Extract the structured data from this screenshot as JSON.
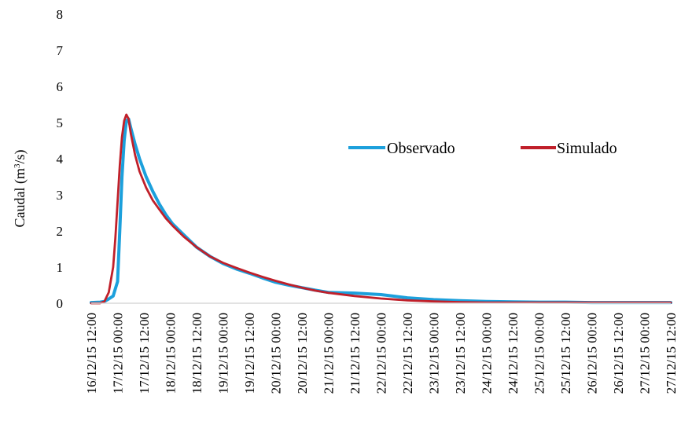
{
  "chart_data": {
    "type": "line",
    "title": "",
    "ylabel": "Caudal (m",
    "ylabel_sup": "3",
    "ylabel_end": "/s)",
    "xlabel": "",
    "ylim": [
      0,
      8
    ],
    "yticks": [
      0,
      1,
      2,
      3,
      4,
      5,
      6,
      7,
      8
    ],
    "xlim_hours": [
      0,
      264
    ],
    "grid": false,
    "legend_position": "right-middle",
    "xtick_labels": [
      "16/12/15 12:00",
      "17/12/15 00:00",
      "17/12/15 12:00",
      "18/12/15 00:00",
      "18/12/15 12:00",
      "19/12/15 00:00",
      "19/12/15 12:00",
      "20/12/15 00:00",
      "20/12/15 12:00",
      "21/12/15 00:00",
      "21/12/15 12:00",
      "22/12/15 00:00",
      "22/12/15 12:00",
      "23/12/15 00:00",
      "23/12/15 12:00",
      "24/12/15 00:00",
      "24/12/15 12:00",
      "25/12/15 00:00",
      "25/12/15 12:00",
      "26/12/15 00:00",
      "26/12/15 12:00",
      "27/12/15 00:00",
      "27/12/15 12:00"
    ],
    "series": [
      {
        "name": "Observado",
        "color": "#1ca0dc",
        "points": [
          [
            0,
            0.02
          ],
          [
            4,
            0.03
          ],
          [
            6,
            0.05
          ],
          [
            8,
            0.12
          ],
          [
            10,
            0.2
          ],
          [
            11,
            0.4
          ],
          [
            12,
            0.6
          ],
          [
            13,
            2.0
          ],
          [
            14,
            3.5
          ],
          [
            15,
            4.5
          ],
          [
            16,
            5.05
          ],
          [
            17,
            5.1
          ],
          [
            18,
            4.85
          ],
          [
            20,
            4.4
          ],
          [
            22,
            4.0
          ],
          [
            25,
            3.5
          ],
          [
            28,
            3.1
          ],
          [
            31,
            2.75
          ],
          [
            34,
            2.45
          ],
          [
            37,
            2.2
          ],
          [
            42,
            1.9
          ],
          [
            48,
            1.55
          ],
          [
            54,
            1.3
          ],
          [
            60,
            1.1
          ],
          [
            66,
            0.95
          ],
          [
            72,
            0.83
          ],
          [
            78,
            0.7
          ],
          [
            84,
            0.58
          ],
          [
            90,
            0.5
          ],
          [
            96,
            0.43
          ],
          [
            102,
            0.36
          ],
          [
            108,
            0.3
          ],
          [
            120,
            0.28
          ],
          [
            132,
            0.24
          ],
          [
            144,
            0.15
          ],
          [
            156,
            0.1
          ],
          [
            168,
            0.07
          ],
          [
            180,
            0.05
          ],
          [
            192,
            0.04
          ],
          [
            204,
            0.03
          ],
          [
            216,
            0.03
          ],
          [
            228,
            0.02
          ],
          [
            240,
            0.02
          ],
          [
            252,
            0.02
          ],
          [
            264,
            0.02
          ]
        ]
      },
      {
        "name": "Simulado",
        "color": "#c0202a",
        "points": [
          [
            0,
            0.0
          ],
          [
            4,
            0.0
          ],
          [
            6,
            0.05
          ],
          [
            8,
            0.3
          ],
          [
            10,
            1.0
          ],
          [
            11,
            1.8
          ],
          [
            12,
            2.8
          ],
          [
            13,
            3.8
          ],
          [
            14,
            4.6
          ],
          [
            15,
            5.05
          ],
          [
            16,
            5.22
          ],
          [
            17,
            5.1
          ],
          [
            18,
            4.7
          ],
          [
            20,
            4.1
          ],
          [
            22,
            3.65
          ],
          [
            25,
            3.2
          ],
          [
            28,
            2.85
          ],
          [
            31,
            2.6
          ],
          [
            34,
            2.35
          ],
          [
            37,
            2.15
          ],
          [
            42,
            1.85
          ],
          [
            48,
            1.55
          ],
          [
            54,
            1.3
          ],
          [
            60,
            1.12
          ],
          [
            66,
            0.98
          ],
          [
            72,
            0.85
          ],
          [
            78,
            0.73
          ],
          [
            84,
            0.62
          ],
          [
            90,
            0.52
          ],
          [
            96,
            0.43
          ],
          [
            102,
            0.35
          ],
          [
            108,
            0.29
          ],
          [
            120,
            0.2
          ],
          [
            132,
            0.13
          ],
          [
            144,
            0.08
          ],
          [
            156,
            0.05
          ],
          [
            168,
            0.03
          ],
          [
            180,
            0.02
          ],
          [
            192,
            0.02
          ],
          [
            204,
            0.02
          ],
          [
            216,
            0.02
          ],
          [
            228,
            0.02
          ],
          [
            240,
            0.02
          ],
          [
            252,
            0.02
          ],
          [
            264,
            0.02
          ]
        ]
      }
    ]
  }
}
